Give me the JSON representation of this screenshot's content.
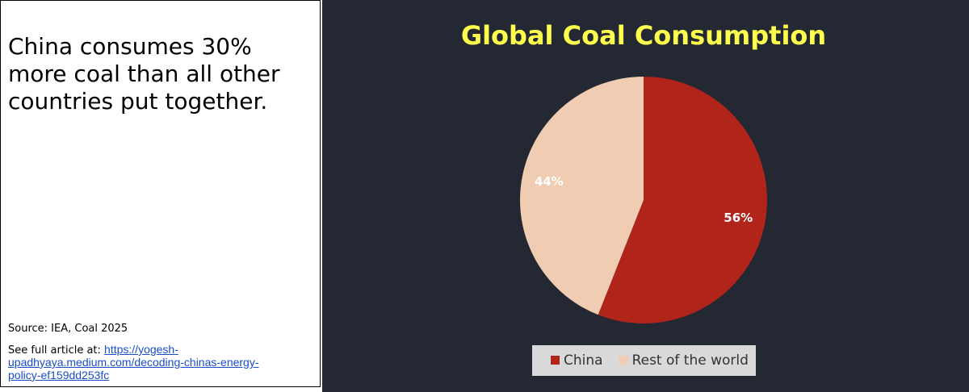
{
  "panel": {
    "headline": "China consumes 30% more coal than all other countries put together.",
    "source": "Source: IEA, Coal 2025",
    "article_prefix": "See full article at:",
    "article_link": "https://yogesh-upadhyaya.medium.com/decoding-chinas-energy-policy-ef159dd253fc"
  },
  "chart_data": {
    "type": "pie",
    "title": "Global Coal Consumption",
    "categories": [
      "China",
      "Rest of the world"
    ],
    "values": [
      56,
      44
    ],
    "value_labels": [
      "56%",
      "44%"
    ],
    "colors": [
      "#b0241a",
      "#f0cdb2"
    ],
    "legend": "bottom"
  }
}
